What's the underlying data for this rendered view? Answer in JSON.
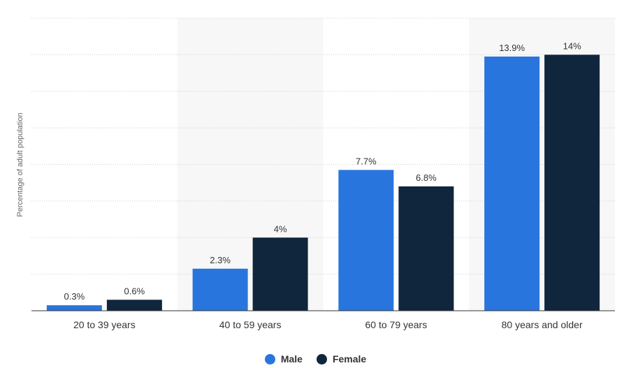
{
  "chart_data": {
    "type": "bar",
    "categories": [
      "20 to 39 years",
      "40 to 59 years",
      "60 to 79 years",
      "80 years and older"
    ],
    "series": [
      {
        "name": "Male",
        "values": [
          0.3,
          2.3,
          7.7,
          13.9
        ],
        "labels": [
          "0.3%",
          "2.3%",
          "7.7%",
          "13.9%"
        ],
        "color": "#2876dd"
      },
      {
        "name": "Female",
        "values": [
          0.6,
          4,
          6.8,
          14
        ],
        "labels": [
          "0.6%",
          "4%",
          "6.8%",
          "14%"
        ],
        "color": "#10263d"
      }
    ],
    "ylabel": "Percentage of adult population",
    "ylim": [
      0,
      16
    ],
    "grid": true,
    "legend": "bottom-center",
    "alternate_band_color": "#f7f7f7"
  }
}
